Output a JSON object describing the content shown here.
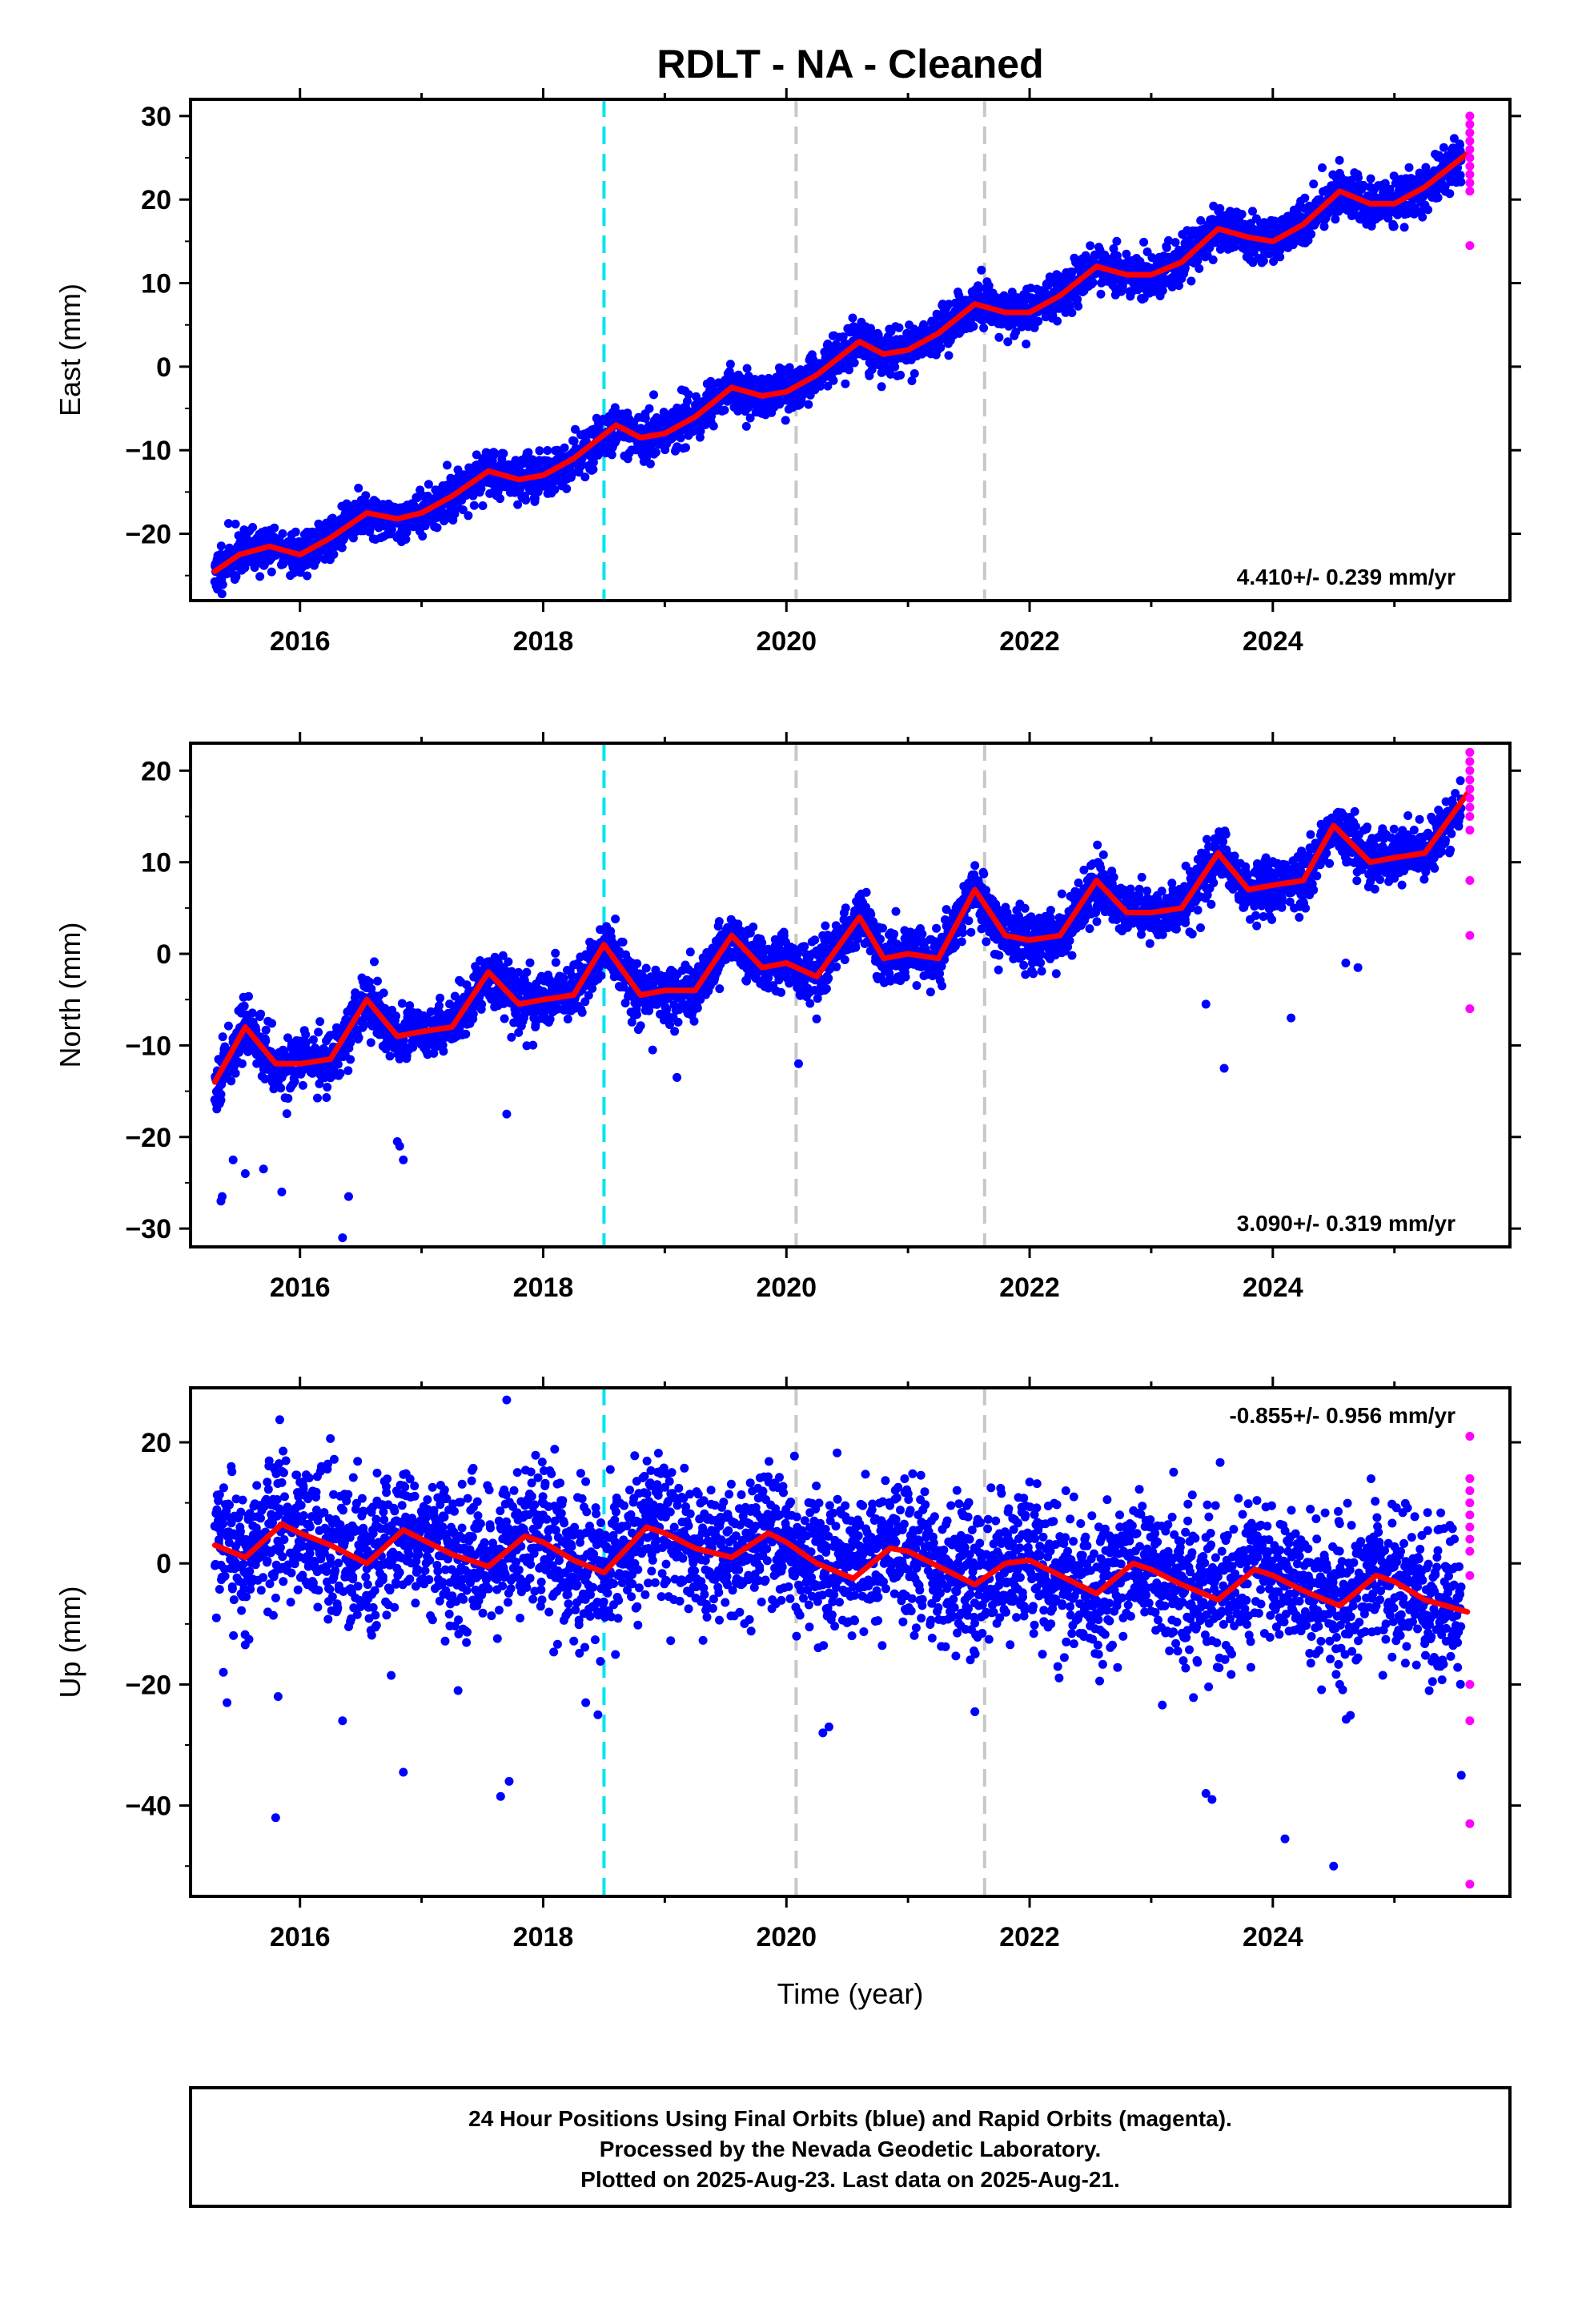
{
  "chart_data": {
    "type": "scatter",
    "title": "RDLT  - NA - Cleaned",
    "xlabel": "Time (year)",
    "xlim": [
      2015.1,
      2025.95
    ],
    "x_ticks": [
      2016,
      2018,
      2020,
      2022,
      2024
    ],
    "x_tick_labels": [
      "2016",
      "2018",
      "2020",
      "2022",
      "2024"
    ],
    "event_lines": [
      {
        "x": 2018.5,
        "color": "#00e5ee",
        "style": "dashed"
      },
      {
        "x": 2020.08,
        "color": "#c8c8c8",
        "style": "dashed"
      },
      {
        "x": 2021.63,
        "color": "#c8c8c8",
        "style": "dashed"
      }
    ],
    "colors": {
      "final": "#0000ff",
      "rapid": "#ff00ff",
      "model": "#ff0000"
    },
    "panels": [
      {
        "name": "east",
        "ylabel": "East (mm)",
        "ylim": [
          -28,
          32
        ],
        "y_ticks": [
          -20,
          -10,
          0,
          10,
          20,
          30
        ],
        "y_tick_labels": [
          "−20",
          "−10",
          "0",
          "10",
          "20",
          "30"
        ],
        "rate_label": "4.410+/- 0.239 mm/yr",
        "rate_position": "bottom-right",
        "series": [
          {
            "kind": "model",
            "x": [
              2015.3,
              2015.5,
              2015.75,
              2016.0,
              2016.25,
              2016.55,
              2016.8,
              2017.0,
              2017.25,
              2017.55,
              2017.8,
              2018.0,
              2018.25,
              2018.6,
              2018.8,
              2019.0,
              2019.25,
              2019.55,
              2019.8,
              2020.0,
              2020.25,
              2020.6,
              2020.8,
              2021.0,
              2021.25,
              2021.55,
              2021.8,
              2022.0,
              2022.25,
              2022.55,
              2022.8,
              2023.0,
              2023.25,
              2023.55,
              2023.8,
              2024.0,
              2024.25,
              2024.55,
              2024.8,
              2025.0,
              2025.25,
              2025.6
            ],
            "y": [
              -24.5,
              -22.5,
              -21.5,
              -22.5,
              -20.5,
              -17.5,
              -18.2,
              -17.5,
              -15.5,
              -12.5,
              -13.5,
              -13,
              -11,
              -7,
              -8.5,
              -8,
              -6,
              -2.5,
              -3.5,
              -3,
              -1,
              3,
              1.5,
              2,
              4,
              7.5,
              6.5,
              6.5,
              8.5,
              12,
              11,
              11,
              12.5,
              16.5,
              15.5,
              15,
              17,
              21,
              19.5,
              19.5,
              21.5,
              25.5
            ]
          },
          {
            "kind": "final",
            "x": [
              2015.3,
              2025.55
            ],
            "y": [
              -24.5,
              24.5
            ],
            "points": 3600,
            "amplitude": 1.6,
            "scatter": 1.3,
            "seed": 11
          }
        ],
        "rapid": {
          "x": 2025.62,
          "y": [
            30,
            29,
            28,
            27,
            26,
            25,
            24,
            23,
            22,
            21,
            14.5
          ]
        }
      },
      {
        "name": "north",
        "ylabel": "North (mm)",
        "ylim": [
          -32,
          23
        ],
        "y_ticks": [
          -30,
          -20,
          -10,
          0,
          10,
          20
        ],
        "y_tick_labels": [
          "−30",
          "−20",
          "−10",
          "0",
          "10",
          "20"
        ],
        "rate_label": "3.090+/- 0.319 mm/yr",
        "rate_position": "bottom-right",
        "series": [
          {
            "kind": "model",
            "x": [
              2015.3,
              2015.55,
              2015.8,
              2016.0,
              2016.25,
              2016.55,
              2016.8,
              2017.0,
              2017.25,
              2017.55,
              2017.8,
              2018.0,
              2018.25,
              2018.5,
              2018.8,
              2019.0,
              2019.25,
              2019.55,
              2019.8,
              2020.0,
              2020.25,
              2020.6,
              2020.8,
              2021.0,
              2021.25,
              2021.55,
              2021.8,
              2022.0,
              2022.25,
              2022.55,
              2022.8,
              2023.0,
              2023.25,
              2023.55,
              2023.8,
              2024.0,
              2024.25,
              2024.5,
              2024.8,
              2025.0,
              2025.25,
              2025.6
            ],
            "y": [
              -14,
              -8,
              -12,
              -12,
              -11.5,
              -5,
              -9,
              -8.5,
              -8,
              -2,
              -5.5,
              -5,
              -4.5,
              1,
              -4.5,
              -4,
              -4,
              2,
              -1.5,
              -1,
              -2.5,
              4,
              -0.5,
              0,
              -0.5,
              7,
              2,
              1.5,
              2,
              8,
              4.5,
              4.5,
              5,
              11,
              7,
              7.5,
              8,
              14,
              10,
              10.5,
              11,
              17.5
            ]
          },
          {
            "kind": "final",
            "x": [
              2015.3,
              2025.55
            ],
            "y": [
              -12,
              15
            ],
            "points": 3600,
            "amplitude": 1.4,
            "scatter": 1.5,
            "seed": 23
          }
        ],
        "outliers": {
          "x": [
            2015.35,
            2015.36,
            2015.45,
            2015.55,
            2015.7,
            2015.85,
            2016.35,
            2016.4,
            2016.8,
            2016.82,
            2016.85,
            2017.3,
            2017.7,
            2018.9,
            2019.1,
            2020.1,
            2023.45,
            2023.6,
            2024.15,
            2024.6,
            2024.7
          ],
          "y": [
            -27,
            -26.5,
            -22.5,
            -24,
            -23.5,
            -26,
            -31,
            -26.5,
            -20.5,
            -21,
            -22.5,
            -5.5,
            -17.5,
            -10.5,
            -13.5,
            -12,
            -5.5,
            -12.5,
            -7,
            -1,
            -1.5
          ]
        },
        "rapid": {
          "x": 2025.62,
          "y": [
            22,
            21,
            20,
            19,
            18,
            17,
            16,
            15,
            13.5,
            8,
            2,
            -6
          ]
        }
      },
      {
        "name": "up",
        "ylabel": "Up (mm)",
        "ylim": [
          -55,
          29
        ],
        "y_ticks": [
          -40,
          -20,
          0,
          20
        ],
        "y_tick_labels": [
          "−40",
          "−20",
          "0",
          "20"
        ],
        "rate_label": "-0.855+/- 0.956 mm/yr",
        "rate_position": "top-right",
        "series": [
          {
            "kind": "model",
            "x": [
              2015.3,
              2015.55,
              2015.85,
              2016.0,
              2016.25,
              2016.55,
              2016.85,
              2017.0,
              2017.25,
              2017.55,
              2017.85,
              2018.0,
              2018.25,
              2018.5,
              2018.85,
              2019.0,
              2019.25,
              2019.55,
              2019.85,
              2020.0,
              2020.25,
              2020.55,
              2020.85,
              2021.0,
              2021.25,
              2021.55,
              2021.8,
              2022.0,
              2022.25,
              2022.55,
              2022.85,
              2023.0,
              2023.25,
              2023.55,
              2023.85,
              2024.0,
              2024.25,
              2024.55,
              2024.85,
              2025.0,
              2025.25,
              2025.6
            ],
            "y": [
              3,
              1,
              6.5,
              5,
              3,
              0,
              5.5,
              4,
              1.5,
              -0.5,
              4.5,
              3.5,
              0.5,
              -1.5,
              6,
              5,
              2.5,
              1,
              5,
              3.5,
              0,
              -2.5,
              2.5,
              2,
              -0.5,
              -3.5,
              0,
              0.5,
              -2,
              -5,
              0,
              -1,
              -3.5,
              -6,
              -1,
              -2,
              -4.5,
              -7,
              -2,
              -3,
              -6,
              -8
            ]
          },
          {
            "kind": "final",
            "x": [
              2015.3,
              2025.55
            ],
            "y": [
              3,
              -8
            ],
            "points": 3600,
            "amplitude": 3,
            "scatter": 5.8,
            "seed": 37
          }
        ],
        "outliers": {
          "x": [
            2015.37,
            2015.4,
            2015.8,
            2015.82,
            2016.35,
            2016.85,
            2016.75,
            2017.3,
            2017.65,
            2017.72,
            2017.7,
            2018.35,
            2018.45,
            2020.3,
            2020.35,
            2021.55,
            2023.45,
            2023.5,
            2024.1,
            2024.5,
            2024.55,
            2025.55
          ],
          "y": [
            -18,
            -23,
            -42,
            -22,
            -26,
            -34.5,
            -18.5,
            -21,
            -38.5,
            -36,
            27,
            -23,
            -25,
            -28,
            -27,
            -24.5,
            -38,
            -39,
            -45.5,
            -50,
            -20,
            -35
          ]
        },
        "rapid": {
          "x": 2025.62,
          "y": [
            21,
            14,
            12,
            10,
            8,
            6,
            4,
            2,
            -2,
            -20,
            -26,
            -43,
            -53
          ]
        }
      }
    ]
  },
  "footer": {
    "line1": "24 Hour Positions Using Final Orbits (blue) and Rapid Orbits (magenta).",
    "line2": "Processed by the Nevada Geodetic Laboratory.",
    "line3": "Plotted on 2025-Aug-23. Last data on 2025-Aug-21."
  }
}
